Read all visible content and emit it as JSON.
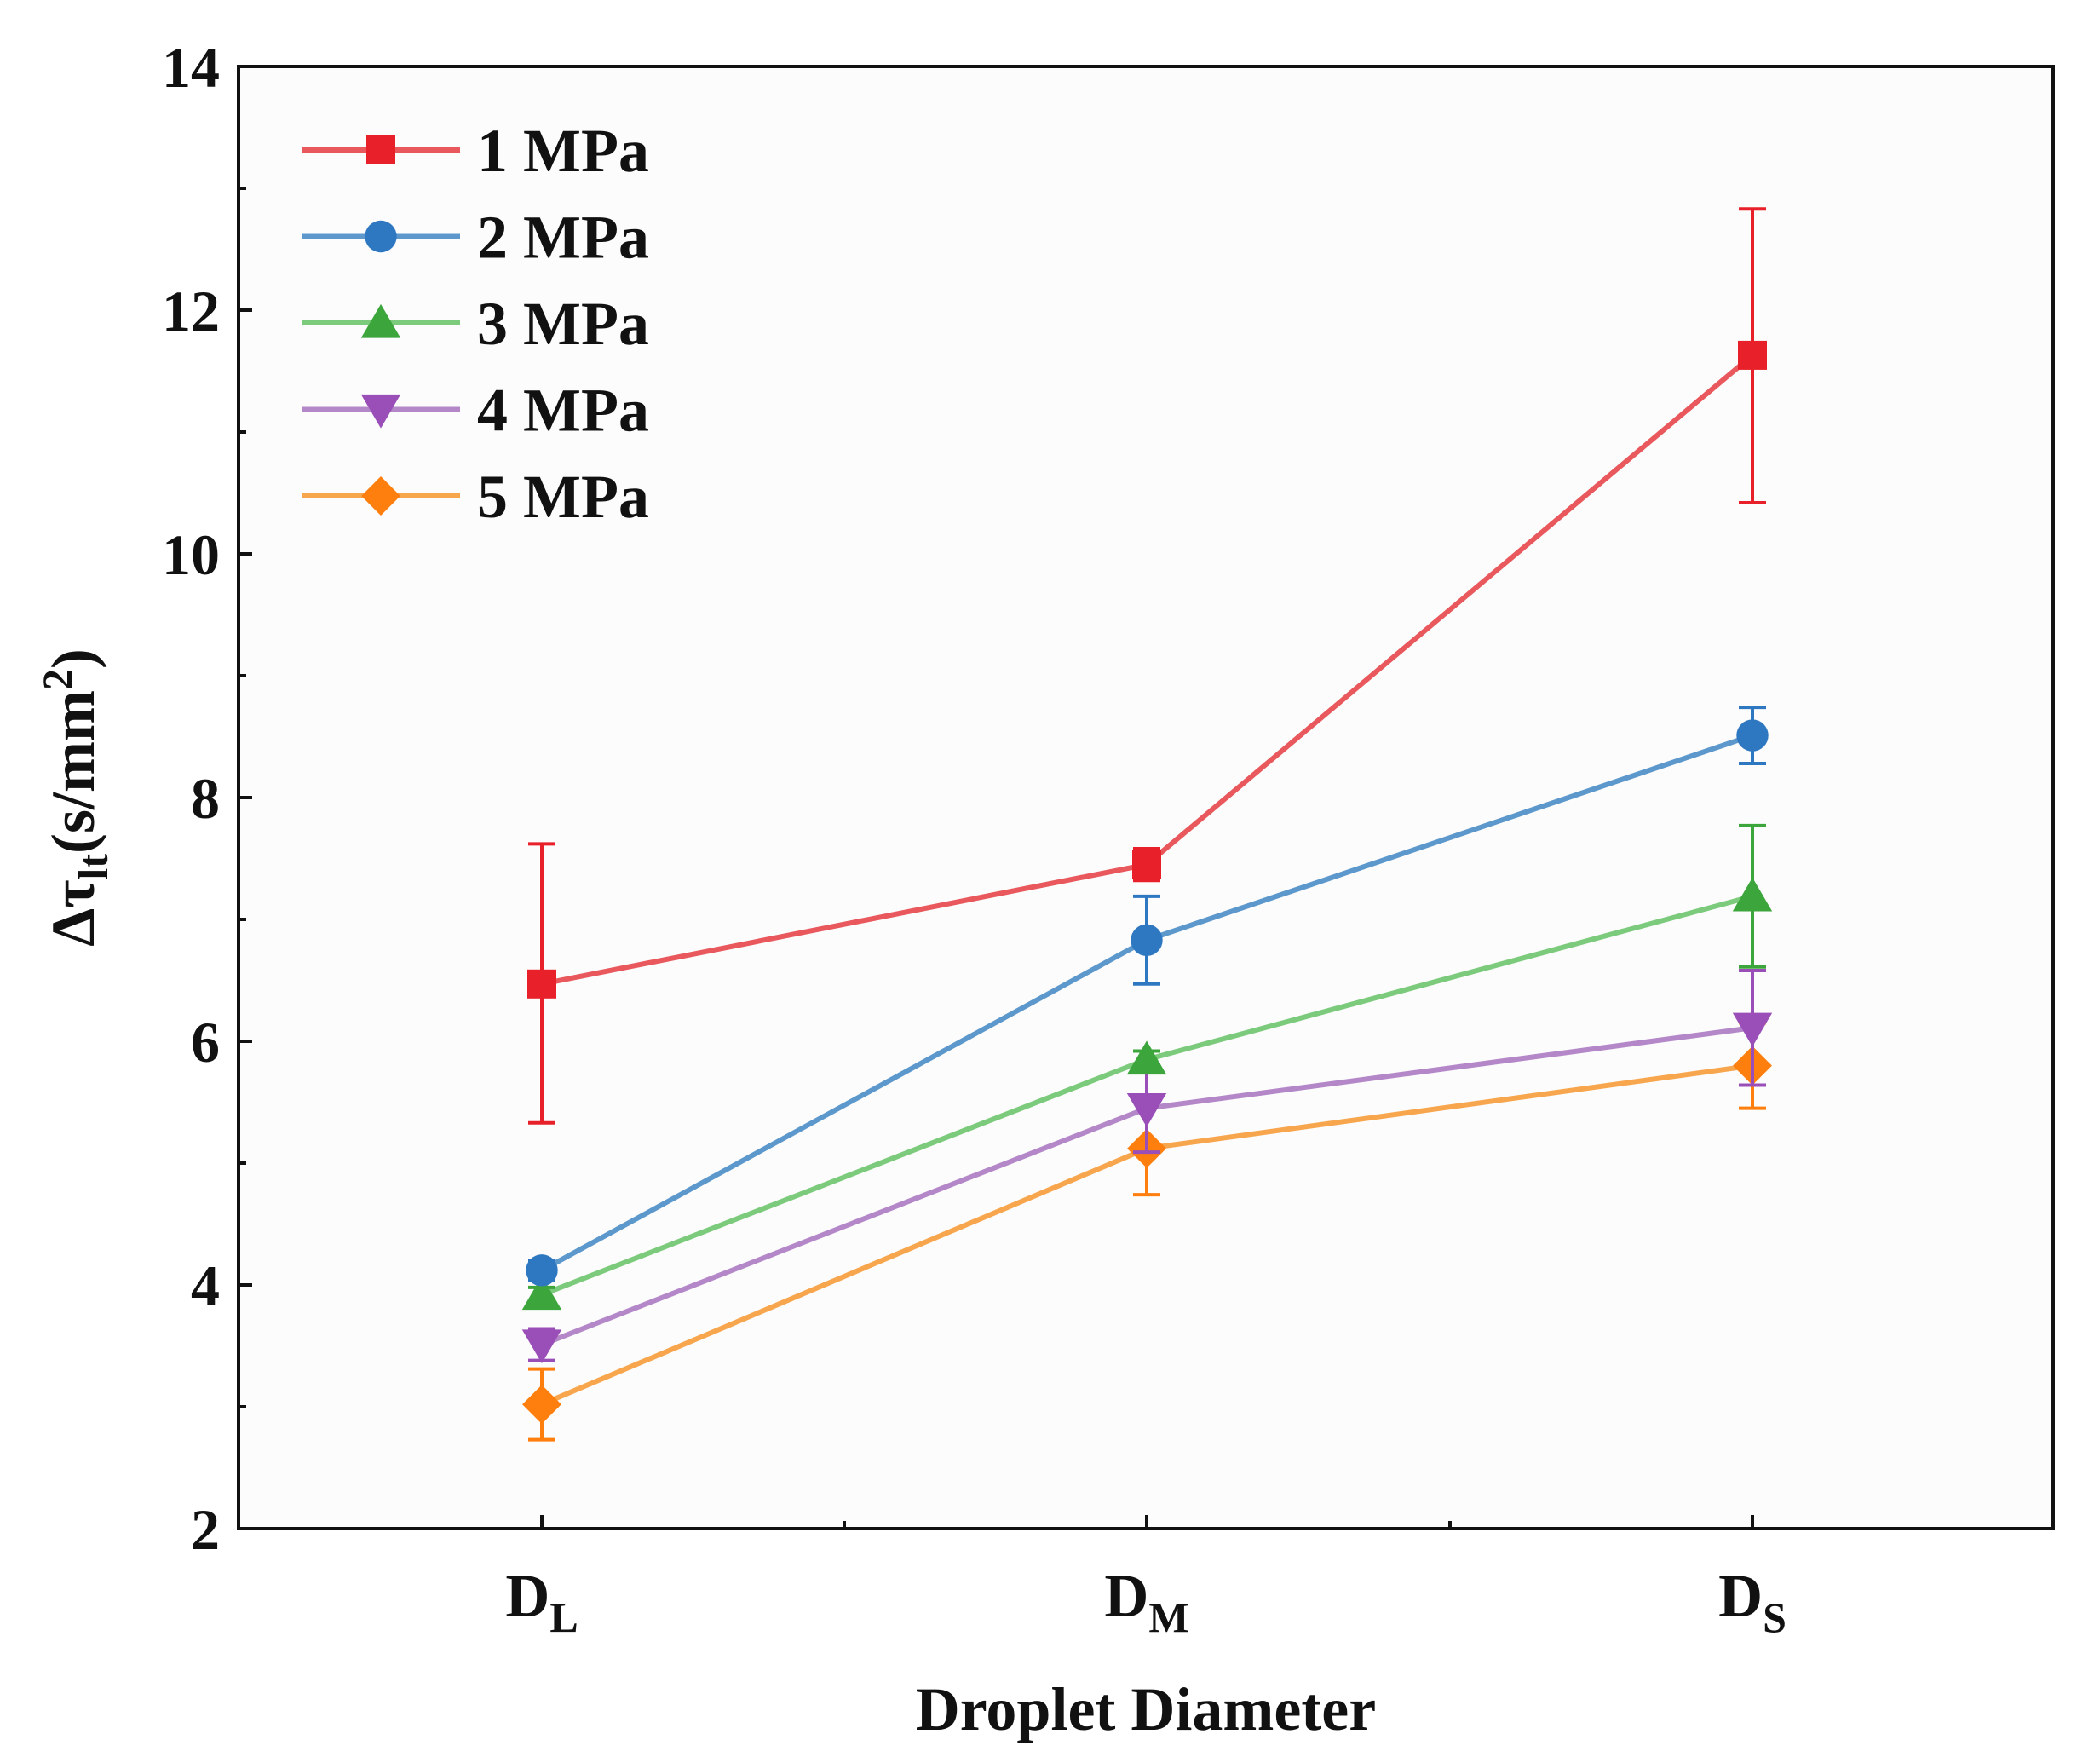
{
  "chart_data": {
    "type": "line",
    "title": "",
    "xlabel": "Droplet Diameter",
    "ylabel": {
      "prefix": "Δτ",
      "subscript": "lt",
      "unit_open": "(s/mm",
      "superscript": "2",
      "unit_close": ")"
    },
    "categories": [
      {
        "base": "D",
        "sub": "L"
      },
      {
        "base": "D",
        "sub": "M"
      },
      {
        "base": "D",
        "sub": "S"
      }
    ],
    "ylim": [
      2,
      14
    ],
    "yticks": [
      2,
      4,
      6,
      8,
      10,
      12,
      14
    ],
    "yticks_minor": [
      3,
      5,
      7,
      9,
      11,
      13
    ],
    "grid": false,
    "legend_position": "top-left",
    "series": [
      {
        "name": "1 MPa",
        "color": "#e8202a",
        "line_color": "#e8585c",
        "marker": "square",
        "values": [
          6.47,
          7.45,
          11.63
        ],
        "err_low": [
          5.33,
          7.32,
          10.42
        ],
        "err_high": [
          7.62,
          7.58,
          12.83
        ]
      },
      {
        "name": "2 MPa",
        "color": "#2e78c2",
        "line_color": "#5c98cc",
        "marker": "circle",
        "values": [
          4.12,
          6.83,
          8.51
        ],
        "err_low": [
          4.04,
          6.47,
          8.28
        ],
        "err_high": [
          4.2,
          7.19,
          8.74
        ]
      },
      {
        "name": "3 MPa",
        "color": "#3ca63c",
        "line_color": "#7ccb7c",
        "marker": "triangle-up",
        "values": [
          3.92,
          5.85,
          7.19
        ],
        "err_low": [
          3.86,
          5.78,
          6.61
        ],
        "err_high": [
          3.98,
          5.92,
          7.77
        ]
      },
      {
        "name": "4 MPa",
        "color": "#9a4fb8",
        "line_color": "#b487c8",
        "marker": "triangle-down",
        "values": [
          3.51,
          5.45,
          6.11
        ],
        "err_low": [
          3.38,
          5.09,
          5.64
        ],
        "err_high": [
          3.64,
          5.81,
          6.58
        ]
      },
      {
        "name": "5 MPa",
        "color": "#ff7f0e",
        "line_color": "#f7a64e",
        "marker": "diamond",
        "values": [
          3.02,
          5.12,
          5.8
        ],
        "err_low": [
          2.73,
          4.74,
          5.45
        ],
        "err_high": [
          3.31,
          5.5,
          6.15
        ]
      }
    ]
  }
}
